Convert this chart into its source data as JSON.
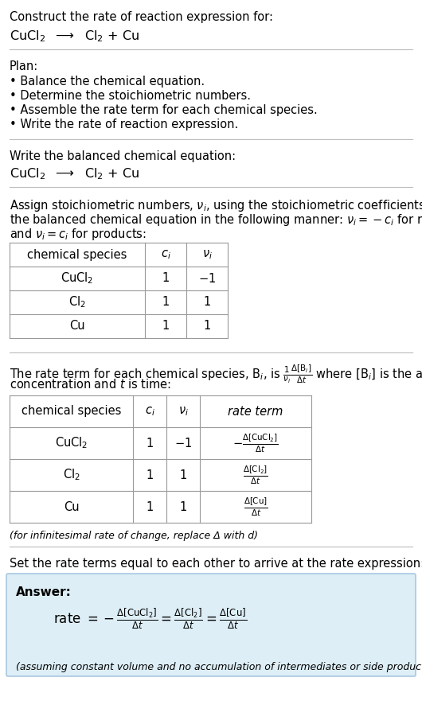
{
  "title_line1": "Construct the rate of reaction expression for:",
  "title_line2": "CuCl$_2$  $\\longrightarrow$  Cl$_2$ + Cu",
  "plan_header": "Plan:",
  "plan_items": [
    "• Balance the chemical equation.",
    "• Determine the stoichiometric numbers.",
    "• Assemble the rate term for each chemical species.",
    "• Write the rate of reaction expression."
  ],
  "section2_header": "Write the balanced chemical equation:",
  "section2_eq": "CuCl$_2$  $\\longrightarrow$  Cl$_2$ + Cu",
  "section3_intro_line1": "Assign stoichiometric numbers, $\\nu_i$, using the stoichiometric coefficients, $c_i$, from",
  "section3_intro_line2": "the balanced chemical equation in the following manner: $\\nu_i = -c_i$ for reactants",
  "section3_intro_line3": "and $\\nu_i = c_i$ for products:",
  "table1_headers": [
    "chemical species",
    "$c_i$",
    "$\\nu_i$"
  ],
  "table1_rows": [
    [
      "CuCl$_2$",
      "1",
      "$-1$"
    ],
    [
      "Cl$_2$",
      "1",
      "1"
    ],
    [
      "Cu",
      "1",
      "1"
    ]
  ],
  "section4_intro_line1": "The rate term for each chemical species, B$_i$, is $\\frac{1}{\\nu_i}\\frac{\\Delta[\\mathrm{B}_i]}{\\Delta t}$ where [B$_i$] is the amount",
  "section4_intro_line2": "concentration and $t$ is time:",
  "table2_headers": [
    "chemical species",
    "$c_i$",
    "$\\nu_i$",
    "rate term"
  ],
  "table2_rows": [
    [
      "CuCl$_2$",
      "1",
      "$-1$",
      "$-\\frac{\\Delta[\\mathrm{CuCl_2}]}{\\Delta t}$"
    ],
    [
      "Cl$_2$",
      "1",
      "1",
      "$\\frac{\\Delta[\\mathrm{Cl_2}]}{\\Delta t}$"
    ],
    [
      "Cu",
      "1",
      "1",
      "$\\frac{\\Delta[\\mathrm{Cu}]}{\\Delta t}$"
    ]
  ],
  "infinitesimal_note": "(for infinitesimal rate of change, replace Δ with d)",
  "section5_header": "Set the rate terms equal to each other to arrive at the rate expression:",
  "answer_label": "Answer:",
  "answer_eq": "rate $= -\\frac{\\Delta[\\mathrm{CuCl_2}]}{\\Delta t} = \\frac{\\Delta[\\mathrm{Cl_2}]}{\\Delta t} = \\frac{\\Delta[\\mathrm{Cu}]}{\\Delta t}$",
  "answer_note": "(assuming constant volume and no accumulation of intermediates or side products)",
  "bg_color": "#ffffff",
  "answer_box_color": "#ddeef6",
  "answer_box_border": "#a8c8e0",
  "text_color": "#000000",
  "sep_color": "#bbbbbb"
}
